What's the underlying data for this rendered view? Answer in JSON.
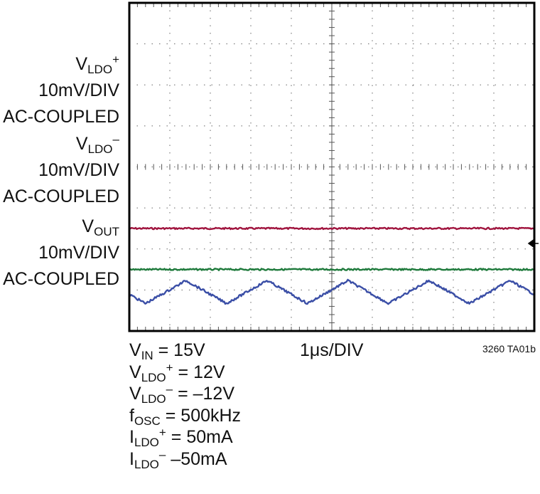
{
  "channels": [
    {
      "base": "V",
      "sub": "LDO",
      "sup": "+",
      "scale": "10mV/DIV",
      "coupling": "AC-COUPLED",
      "color": "#a0143e",
      "level_div": 2.5,
      "waveform": "flat"
    },
    {
      "base": "V",
      "sub": "LDO",
      "sup": "–",
      "scale": "10mV/DIV",
      "coupling": "AC-COUPLED",
      "color": "#1f7a3c",
      "level_div": 1.5,
      "waveform": "flat"
    },
    {
      "base": "V",
      "sub": "OUT",
      "sup": "",
      "scale": "10mV/DIV",
      "coupling": "AC-COUPLED",
      "color": "#3a4ea6",
      "level_div": 0.95,
      "waveform": "triangle",
      "amplitude_div": 0.28,
      "period_us": 2
    }
  ],
  "timebase": "1μs/DIV",
  "figure_id": "3260 TA01b",
  "conditions": [
    {
      "base": "V",
      "sub": "IN",
      "sup": "",
      "text": " = 15V"
    },
    {
      "base": "V",
      "sub": "LDO",
      "sup": "+",
      "text": " = 12V"
    },
    {
      "base": "V",
      "sub": "LDO",
      "sup": "–",
      "text": " = –12V"
    },
    {
      "base": "f",
      "sub": "OSC",
      "sup": "",
      "text": " = 500kHz"
    },
    {
      "base": "I",
      "sub": "LDO",
      "sup": "+",
      "text": " = 50mA"
    },
    {
      "base": "I",
      "sub": "LDO",
      "sup": "–",
      "text": " –50mA"
    }
  ],
  "chart_data": {
    "type": "line",
    "x_divisions": 10,
    "y_divisions": 8,
    "grid": true,
    "time_per_div_us": 1,
    "series": [
      {
        "name": "VLDO+",
        "values_mV": [
          0,
          0,
          0,
          0,
          0,
          0,
          0,
          0,
          0,
          0,
          0
        ]
      },
      {
        "name": "VLDO–",
        "values_mV": [
          0,
          0,
          0,
          0,
          0,
          0,
          0,
          0,
          0,
          0,
          0
        ]
      },
      {
        "name": "VOUT",
        "x_us": [
          0,
          0.5,
          1,
          1.5,
          2,
          2.5,
          3,
          3.5,
          4,
          4.5,
          5,
          5.5,
          6,
          6.5,
          7,
          7.5,
          8,
          8.5,
          9,
          9.5,
          10
        ],
        "values_mV": [
          -1,
          2,
          -3,
          2,
          3,
          -3,
          3,
          -3,
          3,
          -3,
          3,
          -3,
          3,
          -3,
          3,
          -3,
          3,
          -3,
          3,
          -3,
          -1
        ]
      }
    ]
  }
}
